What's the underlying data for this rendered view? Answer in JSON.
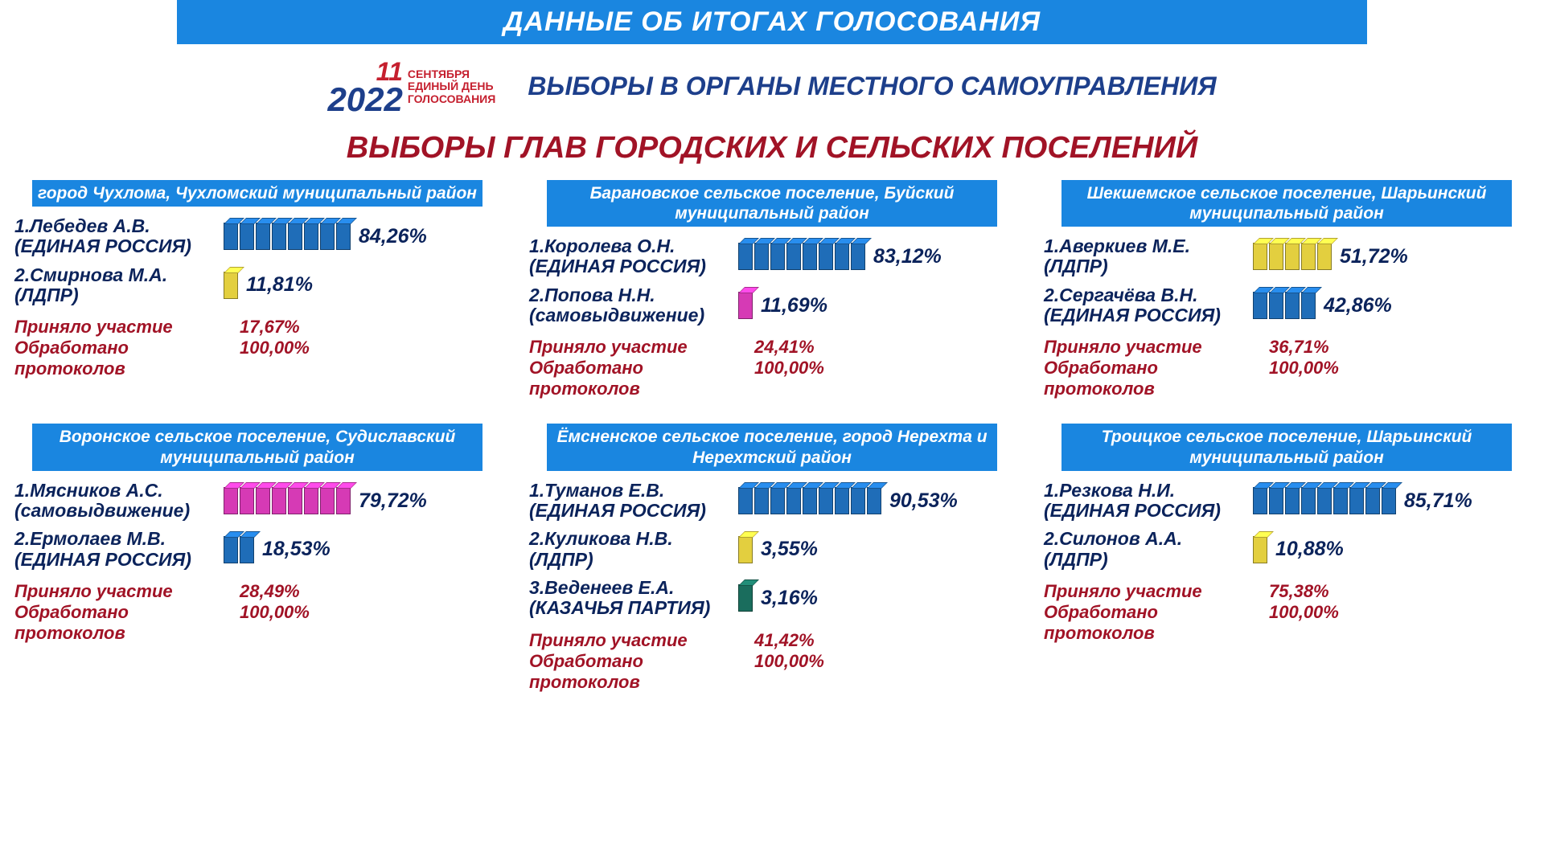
{
  "banner": "ДАННЫЕ ОБ ИТОГАХ ГОЛОСОВАНИЯ",
  "logo": {
    "num_day": "11",
    "num_year": "2022",
    "text_month": "СЕНТЯБРЯ",
    "text_line2": "ЕДИНЫЙ ДЕНЬ",
    "text_line3": "ГОЛОСОВАНИЯ"
  },
  "subtitle": "ВЫБОРЫ В ОРГАНЫ МЕСТНОГО САМОУПРАВЛЕНИЯ",
  "main_title": "ВЫБОРЫ ГЛАВ ГОРОДСКИХ И СЕЛЬСКИХ ПОСЕЛЕНИЙ",
  "colors": {
    "banner_bg": "#1a86e0",
    "banner_fg": "#ffffff",
    "title_red": "#a11326",
    "navy": "#0b235b",
    "dark_blue": "#1d3f8b",
    "logo_red": "#c51f2e",
    "cube_blue": "#1f6db8",
    "cube_yellow": "#e3cf3f",
    "cube_pink": "#d63ab5",
    "cube_green": "#1a6d5d"
  },
  "labels": {
    "turnout": "Приняло участие",
    "processed": "Обработано протоколов"
  },
  "bar_config": {
    "max_cubes": 10,
    "cube_w": 18,
    "cube_h": 34,
    "gap": 2
  },
  "panels": [
    {
      "title": "город Чухлома, Чухломский муниципальный район",
      "candidates": [
        {
          "name": "1.Лебедев А.В.",
          "party": "(ЕДИНАЯ РОССИЯ)",
          "pct": 84.26,
          "pct_text": "84,26%",
          "color": "#1f6db8"
        },
        {
          "name": "2.Смирнова М.А.",
          "party": "(ЛДПР)",
          "pct": 11.81,
          "pct_text": "11,81%",
          "color": "#e3cf3f"
        }
      ],
      "turnout": "17,67%",
      "processed": "100,00%"
    },
    {
      "title": "Барановское сельское поселение, Буйский муниципальный район",
      "candidates": [
        {
          "name": "1.Королева О.Н.",
          "party": "(ЕДИНАЯ РОССИЯ)",
          "pct": 83.12,
          "pct_text": "83,12%",
          "color": "#1f6db8"
        },
        {
          "name": "2.Попова Н.Н.",
          "party": "(самовыдвижение)",
          "pct": 11.69,
          "pct_text": "11,69%",
          "color": "#d63ab5"
        }
      ],
      "turnout": "24,41%",
      "processed": "100,00%"
    },
    {
      "title": "Шекшемское сельское поселение, Шарьинский муниципальный район",
      "candidates": [
        {
          "name": "1.Аверкиев М.Е.",
          "party": "(ЛДПР)",
          "pct": 51.72,
          "pct_text": "51,72%",
          "color": "#e3cf3f"
        },
        {
          "name": "2.Сергачёва В.Н.",
          "party": "(ЕДИНАЯ РОССИЯ)",
          "pct": 42.86,
          "pct_text": "42,86%",
          "color": "#1f6db8"
        }
      ],
      "turnout": "36,71%",
      "processed": "100,00%"
    },
    {
      "title": "Воронское сельское поселение, Судиславский муниципальный район",
      "candidates": [
        {
          "name": "1.Мясников А.С.",
          "party": "(самовыдвижение)",
          "pct": 79.72,
          "pct_text": "79,72%",
          "color": "#d63ab5"
        },
        {
          "name": "2.Ермолаев М.В.",
          "party": "(ЕДИНАЯ РОССИЯ)",
          "pct": 18.53,
          "pct_text": "18,53%",
          "color": "#1f6db8"
        }
      ],
      "turnout": "28,49%",
      "processed": "100,00%"
    },
    {
      "title": "Ёмсненское сельское поселение, город Нерехта и Нерехтский район",
      "candidates": [
        {
          "name": "1.Туманов Е.В.",
          "party": "(ЕДИНАЯ РОССИЯ)",
          "pct": 90.53,
          "pct_text": "90,53%",
          "color": "#1f6db8"
        },
        {
          "name": "2.Куликова Н.В.",
          "party": "(ЛДПР)",
          "pct": 3.55,
          "pct_text": "3,55%",
          "color": "#e3cf3f"
        },
        {
          "name": "3.Веденеев Е.А.",
          "party": "(КАЗАЧЬЯ ПАРТИЯ)",
          "pct": 3.16,
          "pct_text": "3,16%",
          "color": "#1a6d5d"
        }
      ],
      "turnout": "41,42%",
      "processed": "100,00%"
    },
    {
      "title": "Троицкое сельское поселение, Шарьинский муниципальный район",
      "candidates": [
        {
          "name": "1.Резкова Н.И.",
          "party": "(ЕДИНАЯ РОССИЯ)",
          "pct": 85.71,
          "pct_text": "85,71%",
          "color": "#1f6db8"
        },
        {
          "name": "2.Силонов А.А.",
          "party": "(ЛДПР)",
          "pct": 10.88,
          "pct_text": "10,88%",
          "color": "#e3cf3f"
        }
      ],
      "turnout": "75,38%",
      "processed": "100,00%"
    }
  ]
}
